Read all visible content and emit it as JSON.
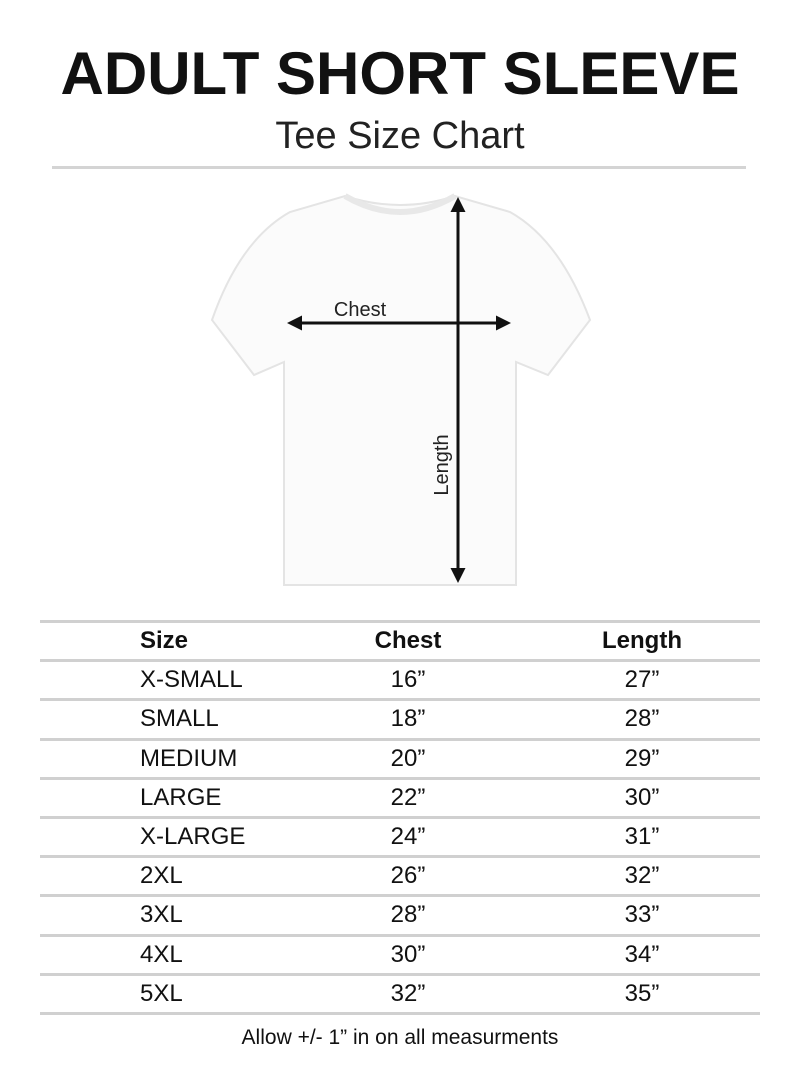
{
  "title": "ADULT SHORT SLEEVE",
  "subtitle": "Tee Size Chart",
  "diagram": {
    "chest_label": "Chest",
    "length_label": "Length"
  },
  "table": {
    "headers": [
      "Size",
      "Chest",
      "Length"
    ],
    "rows": [
      [
        "X-SMALL",
        "16”",
        "27”"
      ],
      [
        "SMALL",
        "18”",
        "28”"
      ],
      [
        "MEDIUM",
        "20”",
        "29”"
      ],
      [
        "LARGE",
        "22”",
        "30”"
      ],
      [
        "X-LARGE",
        "24”",
        "31”"
      ],
      [
        "2XL",
        "26”",
        "32”"
      ],
      [
        "3XL",
        "28”",
        "33”"
      ],
      [
        "4XL",
        "30”",
        "34”"
      ],
      [
        "5XL",
        "32”",
        "35”"
      ]
    ]
  },
  "footnote": "Allow +/- 1” in on all measurments"
}
